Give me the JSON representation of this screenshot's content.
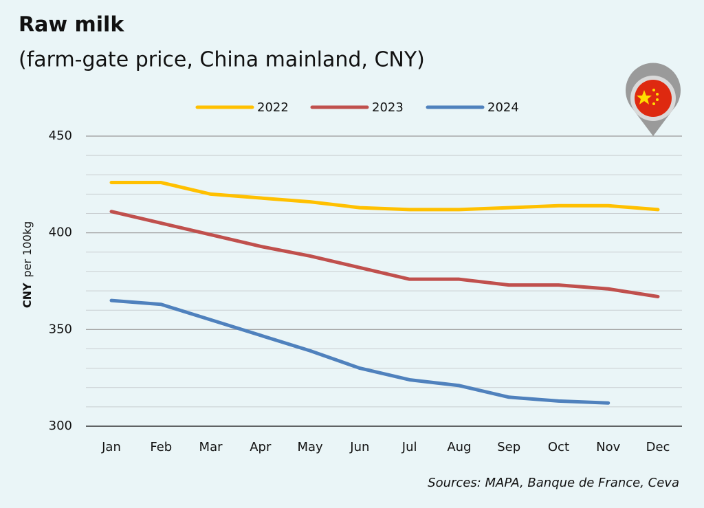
{
  "chart_data": {
    "type": "line",
    "title": "Raw milk",
    "subtitle": "(farm-gate price, China mainland, CNY)",
    "y_unit": "CNY",
    "ylabel": "per 100kg",
    "source": "Sources: MAPA, Banque de France, Ceva",
    "categories": [
      "Jan",
      "Feb",
      "Mar",
      "Apr",
      "May",
      "Jun",
      "Jul",
      "Aug",
      "Sep",
      "Oct",
      "Nov",
      "Dec"
    ],
    "series": [
      {
        "name": "2022",
        "color": "#ffc000",
        "values": [
          426,
          426,
          420,
          418,
          416,
          413,
          412,
          412,
          413,
          414,
          414,
          412
        ]
      },
      {
        "name": "2023",
        "color": "#c0504d",
        "values": [
          411,
          405,
          399,
          393,
          388,
          382,
          376,
          376,
          373,
          373,
          371,
          367
        ]
      },
      {
        "name": "2024",
        "color": "#4f81bd",
        "values": [
          365,
          363,
          355,
          347,
          339,
          330,
          324,
          321,
          315,
          313,
          312,
          null
        ]
      }
    ],
    "ylim": [
      300,
      450
    ],
    "yticks": [
      300,
      350,
      400,
      450
    ],
    "minor_grid": [
      310,
      320,
      330,
      340,
      360,
      370,
      380,
      390,
      410,
      420,
      430,
      440
    ],
    "grid": true,
    "legend": "top"
  }
}
